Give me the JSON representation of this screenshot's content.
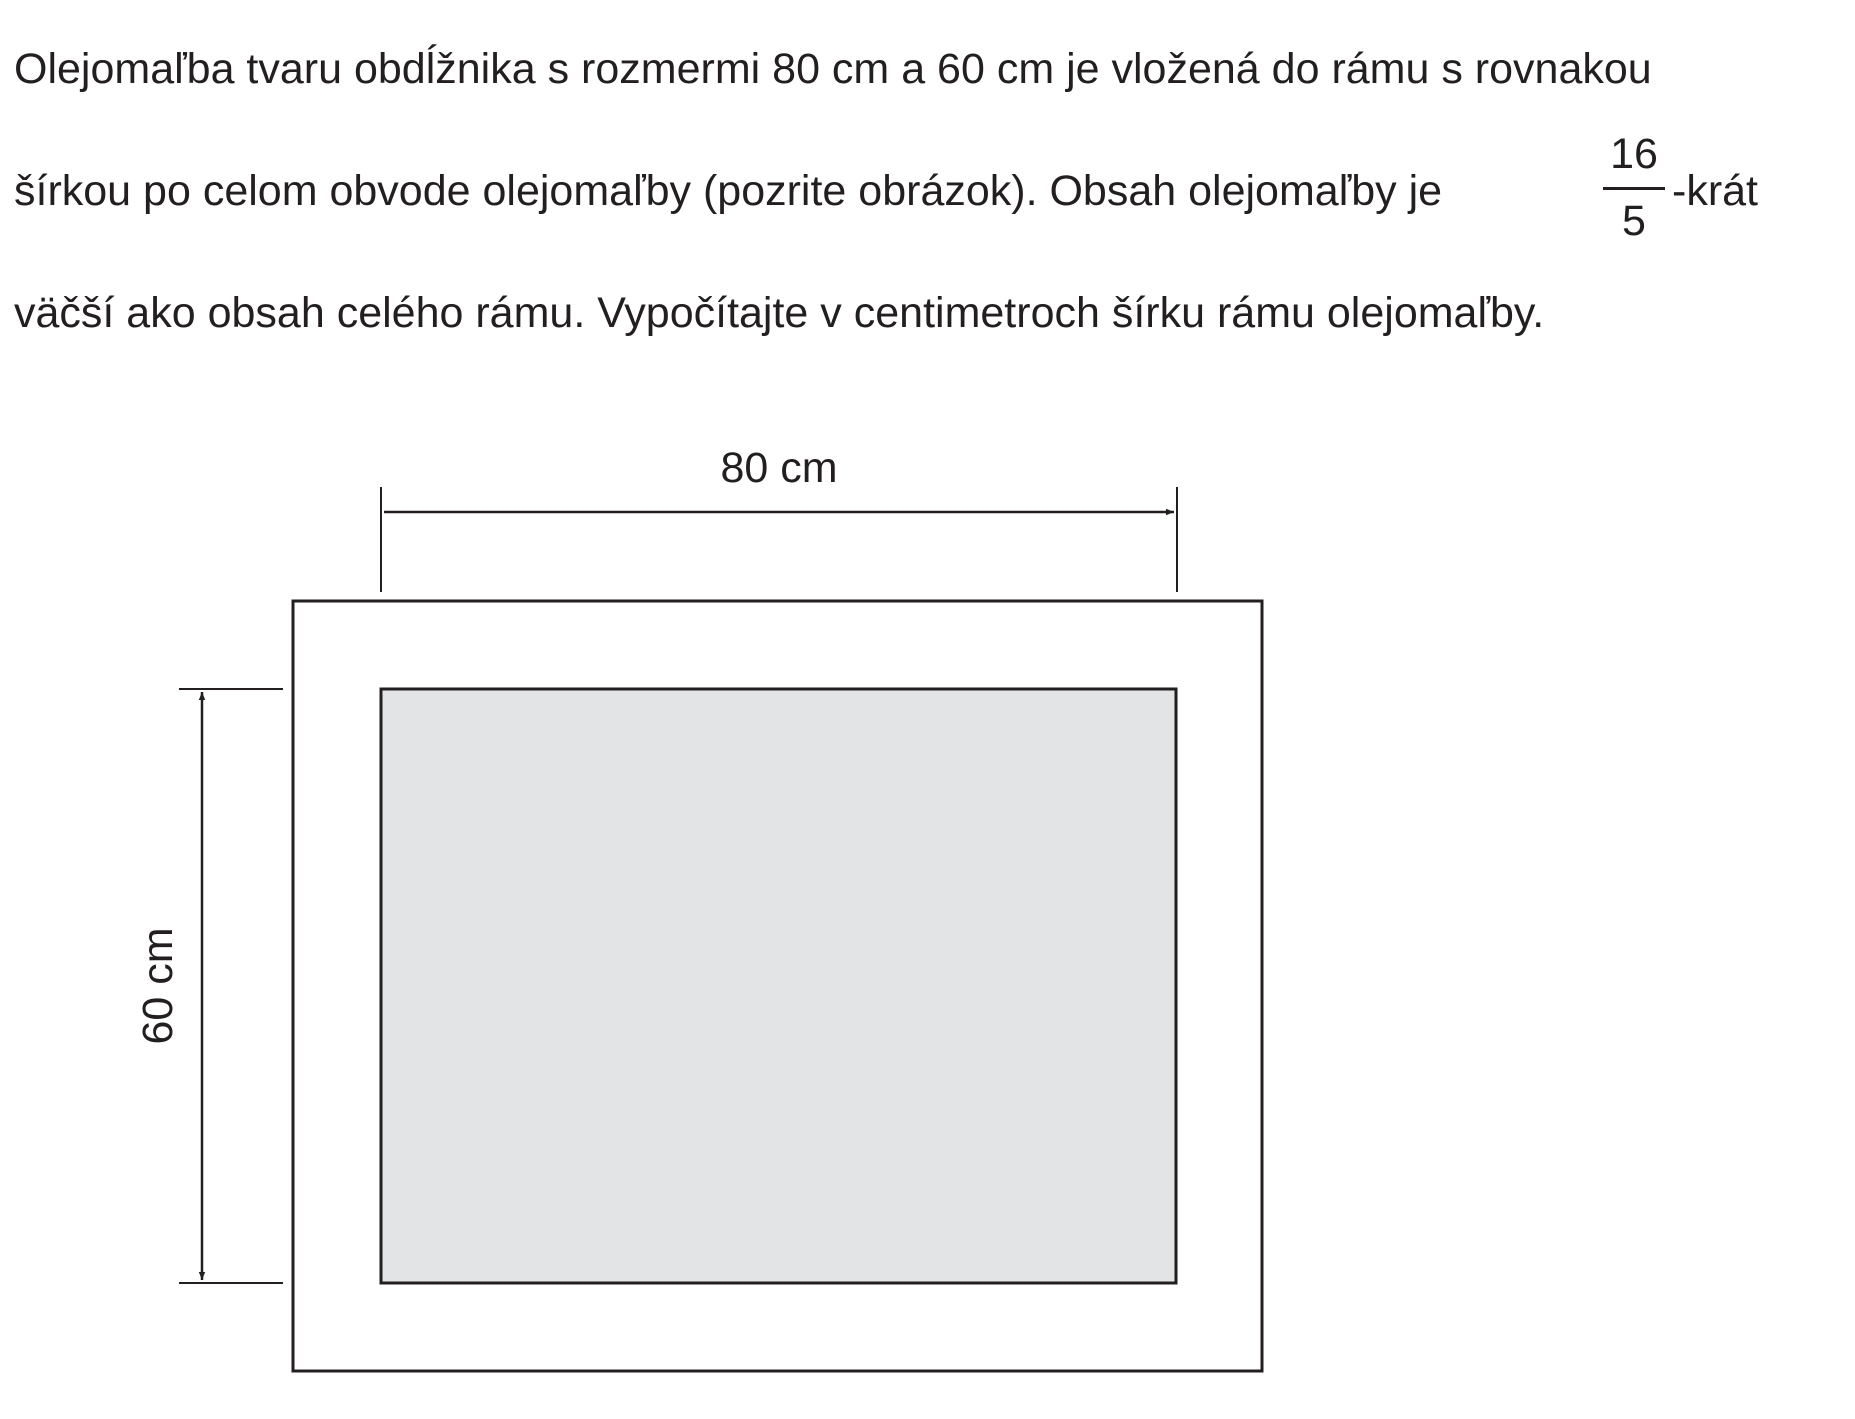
{
  "problem": {
    "line1": "Olejomaľba tvaru obdĺžnika s rozmermi 80 cm a 60 cm je vložená do rámu s rovnakou",
    "line2": "šírkou po celom obvode olejomaľby (pozrite obrázok). Obsah olejomaľby je",
    "fraction": {
      "numerator": "16",
      "denominator": "5"
    },
    "line2_suffix": "-krát",
    "line3": "väčší ako obsah celého rámu. Vypočítajte v centimetroch šírku rámu olejomaľby."
  },
  "figure": {
    "width_label": "80 cm",
    "height_label": "60 cm",
    "colors": {
      "painting_fill": "#e3e4e6",
      "frame_fill": "#ffffff",
      "stroke": "#231f20"
    }
  }
}
